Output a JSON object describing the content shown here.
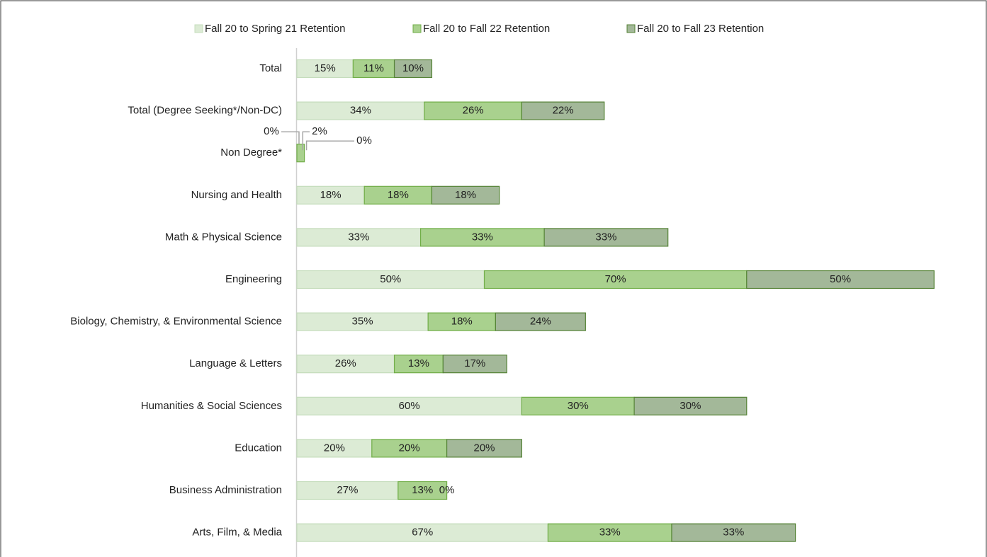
{
  "chart_data": {
    "type": "stacked_bar_horizontal",
    "categories": [
      "Total",
      "Total (Degree Seeking*/Non-DC)",
      "Non Degree*",
      "Nursing and Health",
      "Math & Physical Science",
      "Engineering",
      "Biology, Chemistry, & Environmental Science",
      "Language & Letters",
      "Humanities & Social Sciences",
      "Education",
      "Business Administration",
      "Arts, Film, & Media"
    ],
    "series": [
      {
        "name": "Fall 20 to Spring 21 Retention",
        "color": "#dcebd5",
        "values": [
          15,
          34,
          0,
          18,
          33,
          50,
          35,
          26,
          60,
          20,
          27,
          67
        ],
        "value_labels": [
          "15%",
          "34%",
          "0%",
          "18%",
          "33%",
          "50%",
          "35%",
          "26%",
          "60%",
          "20%",
          "27%",
          "67%"
        ]
      },
      {
        "name": "Fall 20 to Fall 22 Retention",
        "color": "#a9d18e",
        "values": [
          11,
          26,
          2,
          18,
          33,
          70,
          18,
          13,
          30,
          20,
          13,
          33
        ],
        "value_labels": [
          "11%",
          "26%",
          "2%",
          "18%",
          "33%",
          "70%",
          "18%",
          "13%",
          "30%",
          "20%",
          "13%",
          "33%"
        ]
      },
      {
        "name": "Fall 20 to Fall 23 Retention",
        "color": "#a3b899",
        "values": [
          10,
          22,
          0,
          18,
          33,
          50,
          24,
          17,
          30,
          20,
          0,
          33
        ],
        "value_labels": [
          "10%",
          "22%",
          "0%",
          "18%",
          "33%",
          "50%",
          "24%",
          "17%",
          "30%",
          "20%",
          "0%",
          "33%"
        ]
      }
    ]
  }
}
